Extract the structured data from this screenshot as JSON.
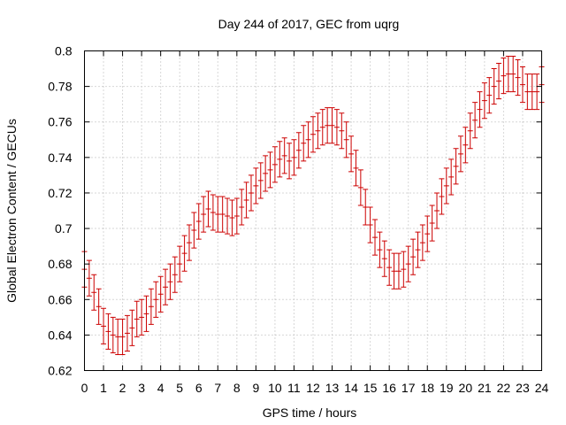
{
  "chart_data": {
    "type": "scatter",
    "title": "Day 244 of 2017, GEC from uqrg",
    "xlabel": "GPS time / hours",
    "ylabel": "Global Electron Content / GECUs",
    "xlim": [
      0,
      24
    ],
    "ylim": [
      0.62,
      0.8
    ],
    "x_ticks": [
      "0",
      "1",
      "2",
      "3",
      "4",
      "5",
      "6",
      "7",
      "8",
      "9",
      "10",
      "11",
      "12",
      "13",
      "14",
      "15",
      "16",
      "17",
      "18",
      "19",
      "20",
      "21",
      "22",
      "23",
      "24"
    ],
    "y_ticks": [
      "0.62",
      "0.64",
      "0.66",
      "0.68",
      "0.7",
      "0.72",
      "0.74",
      "0.76",
      "0.78",
      "0.8"
    ],
    "grid": true,
    "series_color": "#cc0000",
    "error_halfwidth": 0.01,
    "x": [
      0,
      0.25,
      0.5,
      0.75,
      1,
      1.25,
      1.5,
      1.75,
      2,
      2.25,
      2.5,
      2.75,
      3,
      3.25,
      3.5,
      3.75,
      4,
      4.25,
      4.5,
      4.75,
      5,
      5.25,
      5.5,
      5.75,
      6,
      6.25,
      6.5,
      6.75,
      7,
      7.25,
      7.5,
      7.75,
      8,
      8.25,
      8.5,
      8.75,
      9,
      9.25,
      9.5,
      9.75,
      10,
      10.25,
      10.5,
      10.75,
      11,
      11.25,
      11.5,
      11.75,
      12,
      12.25,
      12.5,
      12.75,
      13,
      13.25,
      13.5,
      13.75,
      14,
      14.25,
      14.5,
      14.75,
      15,
      15.25,
      15.5,
      15.75,
      16,
      16.25,
      16.5,
      16.75,
      17,
      17.25,
      17.5,
      17.75,
      18,
      18.25,
      18.5,
      18.75,
      19,
      19.25,
      19.5,
      19.75,
      20,
      20.25,
      20.5,
      20.75,
      21,
      21.25,
      21.5,
      21.75,
      22,
      22.25,
      22.5,
      22.75,
      23,
      23.25,
      23.5,
      23.75,
      24
    ],
    "y": [
      0.677,
      0.672,
      0.664,
      0.656,
      0.645,
      0.642,
      0.64,
      0.639,
      0.639,
      0.641,
      0.644,
      0.649,
      0.65,
      0.652,
      0.656,
      0.66,
      0.663,
      0.667,
      0.67,
      0.674,
      0.68,
      0.686,
      0.692,
      0.699,
      0.704,
      0.708,
      0.711,
      0.709,
      0.708,
      0.708,
      0.707,
      0.706,
      0.707,
      0.712,
      0.716,
      0.72,
      0.724,
      0.727,
      0.731,
      0.733,
      0.736,
      0.739,
      0.741,
      0.738,
      0.74,
      0.744,
      0.748,
      0.75,
      0.753,
      0.755,
      0.757,
      0.758,
      0.758,
      0.757,
      0.755,
      0.75,
      0.742,
      0.734,
      0.723,
      0.712,
      0.702,
      0.695,
      0.688,
      0.683,
      0.678,
      0.676,
      0.676,
      0.677,
      0.68,
      0.684,
      0.688,
      0.692,
      0.697,
      0.703,
      0.71,
      0.718,
      0.724,
      0.729,
      0.735,
      0.742,
      0.747,
      0.755,
      0.761,
      0.767,
      0.772,
      0.775,
      0.78,
      0.783,
      0.786,
      0.787,
      0.787,
      0.785,
      0.781,
      0.777,
      0.777,
      0.777,
      0.781
    ]
  }
}
